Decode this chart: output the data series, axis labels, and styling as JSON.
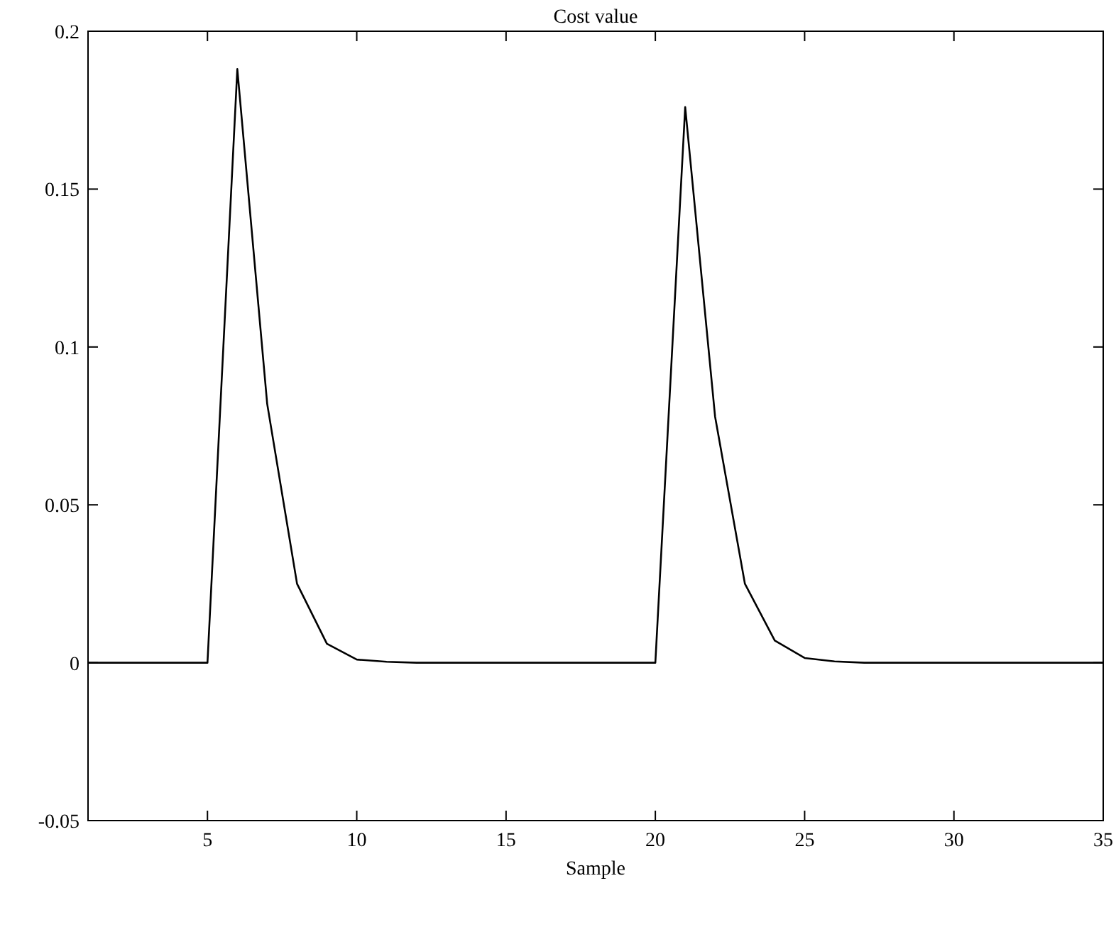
{
  "chart_data": {
    "type": "line",
    "title": "Cost value",
    "xlabel": "Sample",
    "x": [
      1,
      2,
      3,
      4,
      5,
      6,
      7,
      8,
      9,
      10,
      11,
      12,
      13,
      14,
      15,
      16,
      17,
      18,
      19,
      20,
      21,
      22,
      23,
      24,
      25,
      26,
      27,
      28,
      29,
      30,
      31,
      32,
      33,
      34,
      35
    ],
    "series": [
      {
        "color": "#000000",
        "values": [
          0,
          0,
          0,
          0,
          0,
          0.188,
          0.082,
          0.025,
          0.006,
          0.001,
          0.0003,
          0,
          0,
          0,
          0,
          0,
          0,
          0,
          0,
          0,
          0.176,
          0.078,
          0.025,
          0.007,
          0.0015,
          0.0004,
          0,
          0,
          0,
          0,
          0,
          0,
          0,
          0,
          0
        ]
      }
    ],
    "xlim": [
      1,
      35
    ],
    "xticks": [
      5,
      10,
      15,
      20,
      25,
      30,
      35
    ],
    "ylim": [
      -0.05,
      0.2
    ],
    "yticks": [
      -0.05,
      0,
      0.05,
      0.1,
      0.15,
      0.2
    ],
    "grid": false,
    "marker": "none",
    "line_style": "solid"
  }
}
